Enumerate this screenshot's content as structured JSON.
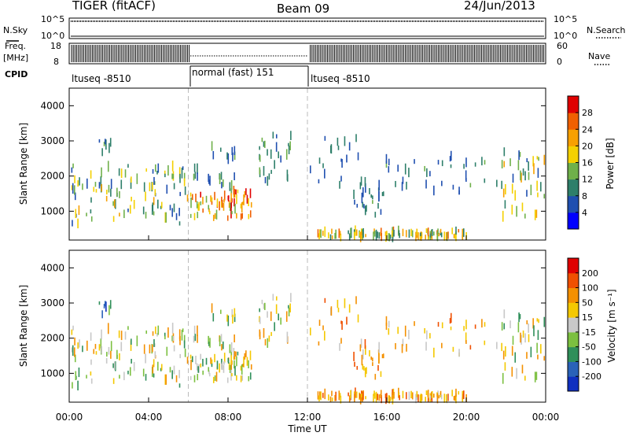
{
  "header": {
    "radar": "TIGER (fitACF)",
    "beam": "Beam 09",
    "date": "24/Jun/2013"
  },
  "nsky_panel": {
    "left_label": "N.Sky",
    "right_label": "N.Search",
    "left_ticks": [
      "10^5",
      "10^0"
    ],
    "right_ticks": [
      "10^5",
      "10^0"
    ]
  },
  "freq_panel": {
    "left_label_1": "Freq.",
    "left_label_2": "[MHz]",
    "right_label": "Nave",
    "left_ticks": [
      "18",
      "8"
    ],
    "right_ticks": [
      "60",
      "0"
    ]
  },
  "cpid": {
    "label": "CPID",
    "segments": [
      {
        "name": "ltuseq -8510",
        "start_h": 0,
        "end_h": 6
      },
      {
        "name": "normal (fast) 151",
        "start_h": 6,
        "end_h": 12
      },
      {
        "name": "ltuseq -8510",
        "start_h": 12,
        "end_h": 24
      }
    ]
  },
  "chart_data": [
    {
      "type": "heatmap",
      "ylabel": "Slant Range [km]",
      "ylim": [
        180,
        4500
      ],
      "y_ticks": [
        "1000",
        "2000",
        "3000",
        "4000"
      ],
      "xlim": [
        0,
        24
      ],
      "colorbar": {
        "label": "Power [dB]",
        "tick_labels": [
          "4",
          "8",
          "12",
          "16",
          "20",
          "24",
          "28"
        ],
        "colors": [
          "#0000ff",
          "#1f4fb0",
          "#2e7f6a",
          "#6fb04a",
          "#f4d000",
          "#f7a000",
          "#f06000",
          "#e00000"
        ],
        "range": [
          0,
          30
        ]
      }
    },
    {
      "type": "heatmap",
      "ylabel": "Slant Range [km]",
      "ylim": [
        180,
        4500
      ],
      "y_ticks": [
        "1000",
        "2000",
        "3000",
        "4000"
      ],
      "xlim": [
        0,
        24
      ],
      "xlabel": "Time UT",
      "x_ticks": [
        "00:00",
        "04:00",
        "08:00",
        "12:00",
        "16:00",
        "20:00",
        "00:00"
      ],
      "colorbar": {
        "label": "Velocity [m s⁻¹]",
        "tick_labels": [
          "200",
          "100",
          "50",
          "15",
          "-15",
          "-50",
          "-100",
          "-200"
        ],
        "colors": [
          "#1030c0",
          "#2a62b8",
          "#2f8f5a",
          "#7cc040",
          "#c8c8c8",
          "#f4c800",
          "#f49000",
          "#f05000",
          "#e00000"
        ],
        "range": [
          -250,
          250
        ]
      }
    }
  ],
  "time_axis": {
    "xlabel": "Time UT",
    "ticks": [
      "00:00",
      "04:00",
      "08:00",
      "12:00",
      "16:00",
      "20:00",
      "00:00"
    ]
  }
}
